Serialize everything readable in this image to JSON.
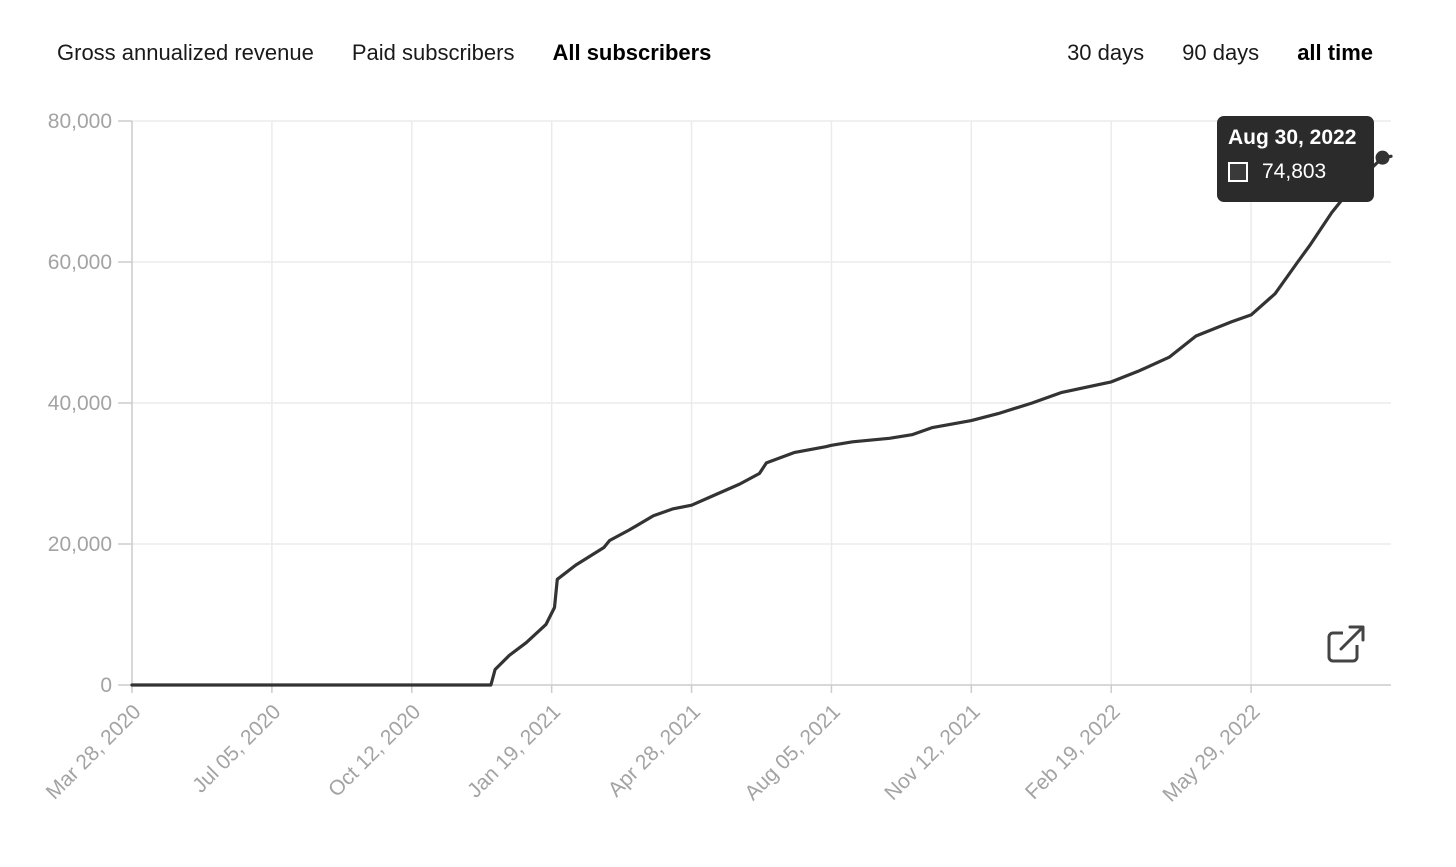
{
  "tabs": [
    {
      "label": "Gross annualized revenue",
      "active": false
    },
    {
      "label": "Paid subscribers",
      "active": false
    },
    {
      "label": "All subscribers",
      "active": true
    }
  ],
  "ranges": [
    {
      "label": "30 days",
      "active": false
    },
    {
      "label": "90 days",
      "active": false
    },
    {
      "label": "all time",
      "active": true
    }
  ],
  "tooltip": {
    "date": "Aug 30, 2022",
    "value": "74,803"
  },
  "icons": {
    "external": "external-link-icon"
  },
  "colors": {
    "line": "#333333",
    "grid": "#ebebeb",
    "tooltip_bg": "#2b2b2b"
  },
  "chart_data": {
    "type": "line",
    "title": "",
    "xlabel": "",
    "ylabel": "",
    "ylim": [
      0,
      80000
    ],
    "yticks": [
      0,
      20000,
      40000,
      60000,
      80000
    ],
    "ytick_labels": [
      "0",
      "20,000",
      "40,000",
      "60,000",
      "80,000"
    ],
    "xticks": [
      "2020-03-28",
      "2020-07-05",
      "2020-10-12",
      "2021-01-19",
      "2021-04-28",
      "2021-08-05",
      "2021-11-12",
      "2022-02-19",
      "2022-05-29"
    ],
    "xtick_labels": [
      "Mar 28, 2020",
      "Jul 05, 2020",
      "Oct 12, 2020",
      "Jan 19, 2021",
      "Apr 28, 2021",
      "Aug 05, 2021",
      "Nov 12, 2021",
      "Feb 19, 2022",
      "May 29, 2022"
    ],
    "xlim": [
      "2020-03-28",
      "2022-09-05"
    ],
    "grid": true,
    "series": [
      {
        "name": "",
        "x": [
          "2020-03-28",
          "2020-07-05",
          "2020-10-12",
          "2020-12-07",
          "2020-12-10",
          "2020-12-20",
          "2021-01-01",
          "2021-01-15",
          "2021-01-21",
          "2021-01-23",
          "2021-02-05",
          "2021-02-25",
          "2021-03-01",
          "2021-03-15",
          "2021-04-01",
          "2021-04-15",
          "2021-04-28",
          "2021-05-15",
          "2021-06-01",
          "2021-06-15",
          "2021-06-20",
          "2021-07-10",
          "2021-08-01",
          "2021-08-05",
          "2021-08-20",
          "2021-09-15",
          "2021-10-01",
          "2021-10-15",
          "2021-11-12",
          "2021-12-01",
          "2021-12-25",
          "2022-01-15",
          "2022-02-19",
          "2022-03-10",
          "2022-04-01",
          "2022-04-20",
          "2022-05-15",
          "2022-05-29",
          "2022-06-15",
          "2022-07-01",
          "2022-07-10",
          "2022-07-25",
          "2022-08-10",
          "2022-08-30",
          "2022-09-05"
        ],
        "values": [
          0,
          0,
          0,
          0,
          2200,
          4200,
          6000,
          8600,
          11000,
          15000,
          17000,
          19500,
          20500,
          22000,
          24000,
          25000,
          25500,
          27000,
          28500,
          30000,
          31500,
          33000,
          33800,
          34000,
          34500,
          35000,
          35500,
          36500,
          37500,
          38500,
          40000,
          41500,
          43000,
          44500,
          46500,
          49500,
          51500,
          52500,
          55500,
          60000,
          62500,
          67000,
          71000,
          74803,
          75000
        ]
      }
    ],
    "highlight": {
      "x": "2022-08-30",
      "value": 74803
    }
  }
}
